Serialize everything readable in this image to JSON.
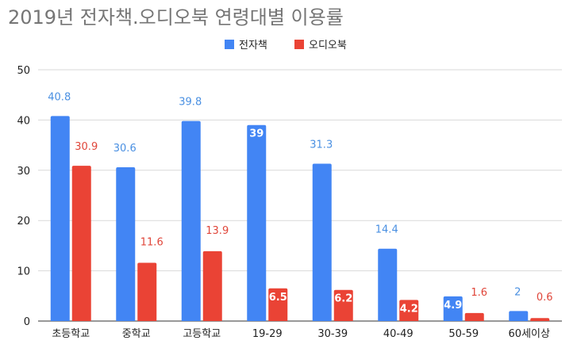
{
  "chart_data": {
    "type": "bar",
    "title": "2019년 전자책.오디오북 연령대별 이용률",
    "categories": [
      "초등학교",
      "중학교",
      "고등학교",
      "19-29",
      "30-39",
      "40-49",
      "50-59",
      "60세이상"
    ],
    "series": [
      {
        "name": "전자책",
        "color": "#4285f4",
        "label_color": "#4a90e2",
        "values": [
          40.8,
          30.6,
          39.8,
          39,
          31.3,
          14.4,
          4.9,
          2
        ]
      },
      {
        "name": "오디오북",
        "color": "#ea4335",
        "label_color": "#e0463a",
        "values": [
          30.9,
          11.6,
          13.9,
          6.5,
          6.2,
          4.2,
          1.6,
          0.6
        ]
      }
    ],
    "yticks": [
      0,
      10,
      20,
      30,
      40,
      50
    ],
    "ylim": [
      0,
      50
    ],
    "xlabel": "",
    "ylabel": "",
    "legend_position": "top-center",
    "grid": true
  }
}
